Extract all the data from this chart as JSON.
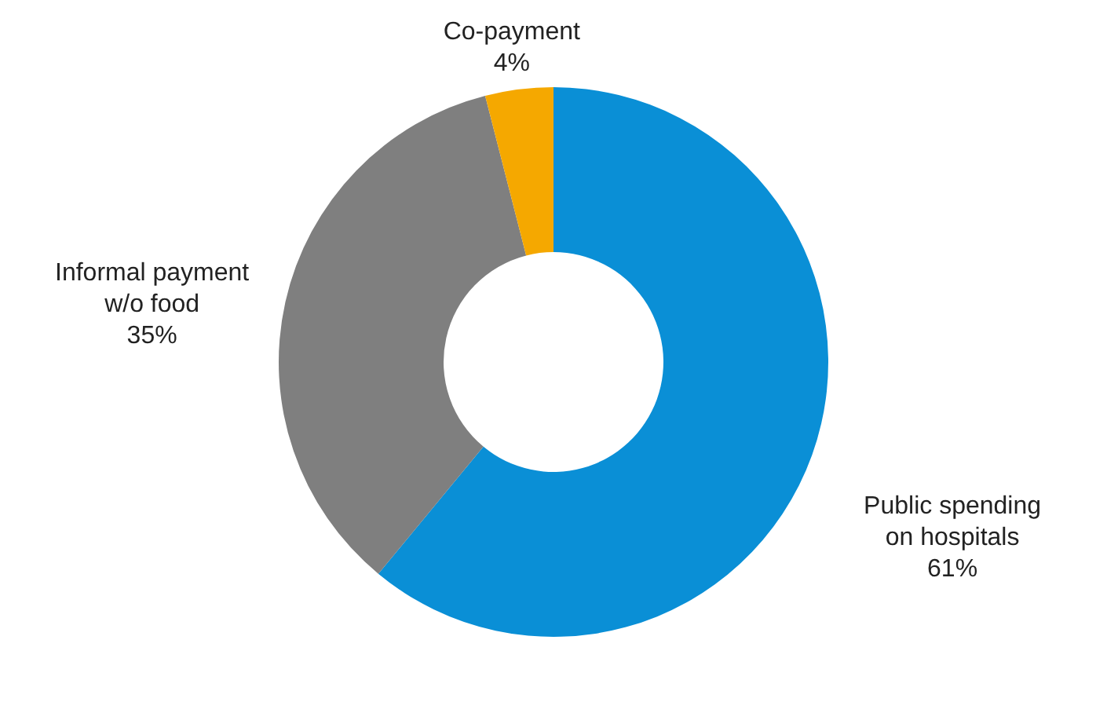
{
  "chart_data": {
    "type": "donut",
    "categories": [
      "Public spending on hospitals",
      "Informal payment w/o food",
      "Co-payment"
    ],
    "values": [
      61,
      35,
      4
    ],
    "colors": [
      "#0a8fd6",
      "#7f7f7f",
      "#f5a800"
    ],
    "value_labels": [
      "61%",
      "35%",
      "4%"
    ]
  }
}
